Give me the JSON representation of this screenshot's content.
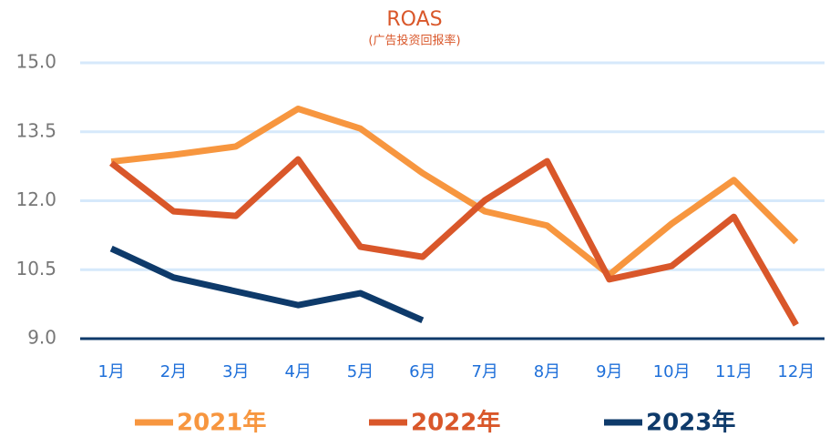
{
  "chart_data": {
    "type": "line",
    "title": "ROAS",
    "subtitle": "(广告投资回报率)",
    "categories": [
      "1月",
      "2月",
      "3月",
      "4月",
      "5月",
      "6月",
      "7月",
      "8月",
      "9月",
      "10月",
      "11月",
      "12月"
    ],
    "series": [
      {
        "name": "2021年",
        "color": "#f7963f",
        "values": [
          12.85,
          13.0,
          13.18,
          14.0,
          13.57,
          12.6,
          11.77,
          11.46,
          10.39,
          11.5,
          12.45,
          11.1
        ]
      },
      {
        "name": "2022年",
        "color": "#d9572a",
        "values": [
          12.82,
          11.77,
          11.67,
          12.9,
          11.0,
          10.78,
          12.01,
          12.86,
          10.29,
          10.58,
          11.65,
          9.3
        ]
      },
      {
        "name": "2023年",
        "color": "#0e3a6a",
        "values": [
          10.96,
          10.33,
          10.03,
          9.73,
          9.99,
          9.4,
          null,
          null,
          null,
          null,
          null,
          null
        ]
      }
    ],
    "ylim": [
      9,
      15
    ],
    "yticks": [
      {
        "value": 9,
        "label": "9.0"
      },
      {
        "value": 10.5,
        "label": "10.5"
      },
      {
        "value": 12,
        "label": "12.0"
      },
      {
        "value": 13.5,
        "label": "13.5"
      },
      {
        "value": 15,
        "label": "15.0"
      }
    ],
    "grid": true,
    "legend": "bottom"
  }
}
